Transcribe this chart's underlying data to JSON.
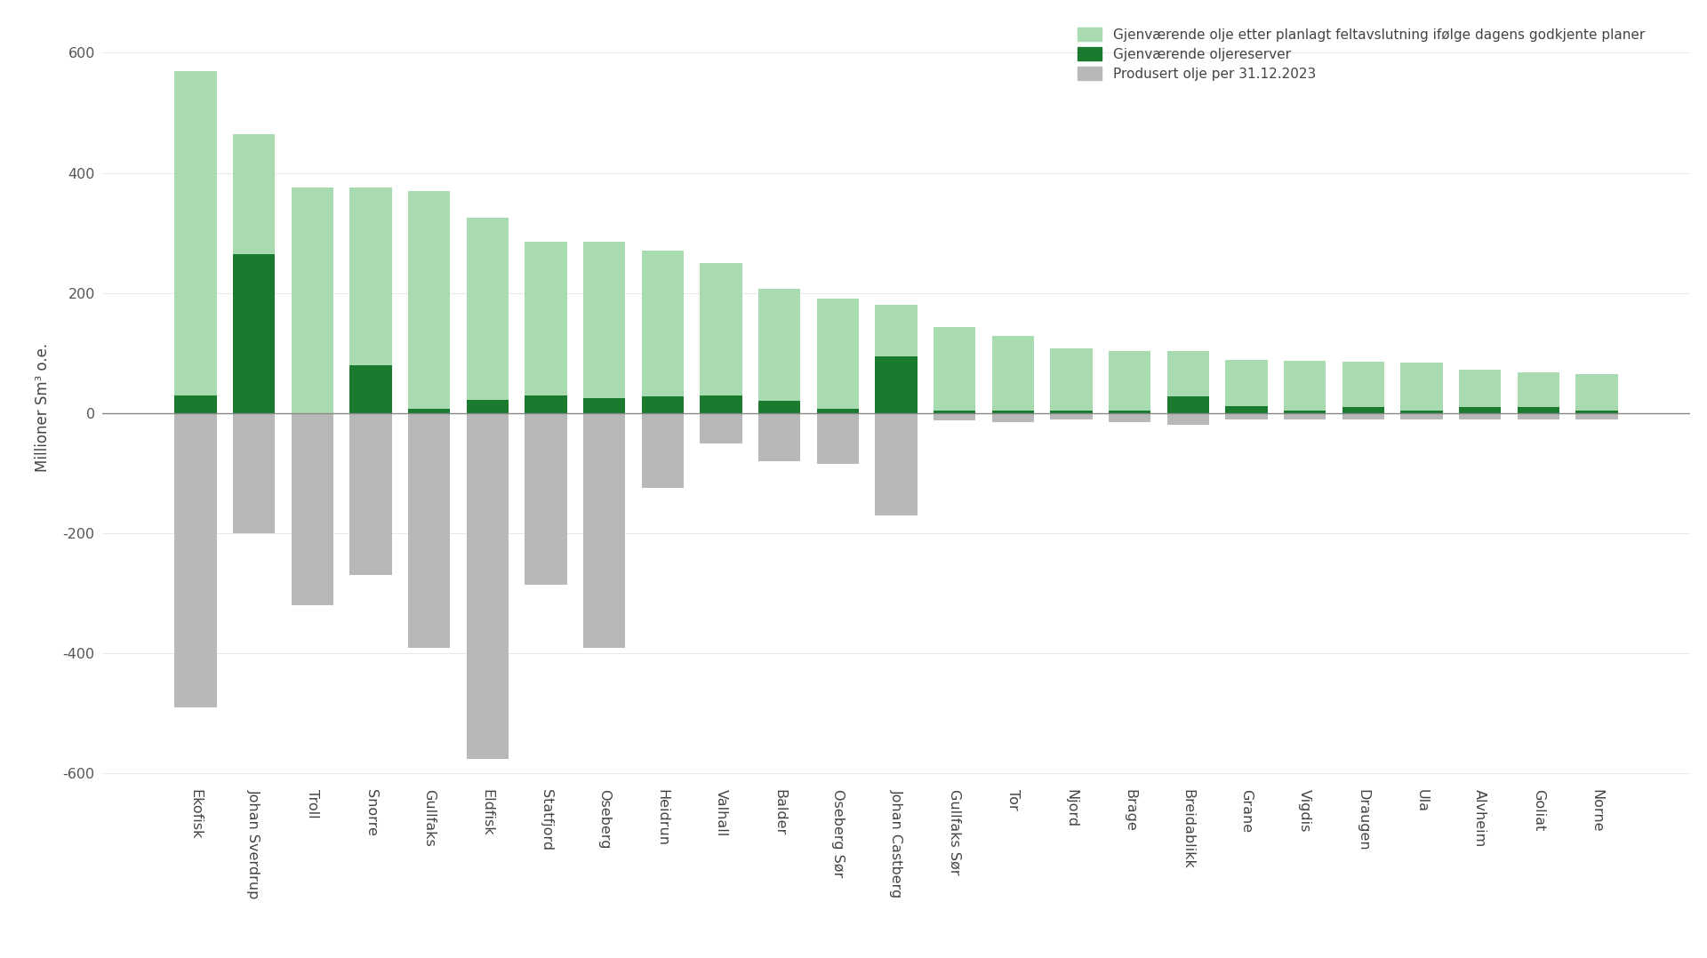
{
  "fields": [
    "Ekofisk",
    "Johan Sverdrup",
    "Troll",
    "Snorre",
    "Gullfaks",
    "Eldfisk",
    "Statfjord",
    "Oseberg",
    "Heidrun",
    "Valhall",
    "Balder",
    "Oseberg Sør",
    "Johan Castberg",
    "Gullfaks Sør",
    "Tor",
    "Njord",
    "Brage",
    "Breidablikk",
    "Grane",
    "Vigdis",
    "Draugen",
    "Ula",
    "Alvheim",
    "Goliat",
    "Norne"
  ],
  "light_green_total": [
    570,
    465,
    375,
    375,
    370,
    325,
    285,
    285,
    270,
    250,
    207,
    190,
    180,
    143,
    128,
    108,
    103,
    103,
    88,
    87,
    86,
    84,
    72,
    68,
    65
  ],
  "dark_green": [
    30,
    265,
    0,
    80,
    8,
    22,
    30,
    25,
    28,
    30,
    20,
    8,
    95,
    5,
    5,
    5,
    5,
    28,
    12,
    5,
    10,
    5,
    10,
    10,
    5
  ],
  "produced": [
    -490,
    -200,
    -320,
    -270,
    -390,
    -575,
    -285,
    -390,
    -125,
    -50,
    -80,
    -85,
    -170,
    -12,
    -15,
    -10,
    -15,
    -20,
    -10,
    -10,
    -10,
    -10,
    -10,
    -10,
    -10
  ],
  "light_green_color": "#a8dbb0",
  "dark_green_color": "#1a7a2e",
  "produced_color": "#b8b8b8",
  "ylabel": "Millioner Sm³ o.e.",
  "legend_1": "Gjenværende olje etter planlagt feltavslutning ifølge dagens godkjente planer",
  "legend_2": "Gjenværende oljereserver",
  "legend_3": "Produsert olje per 31.12.2023",
  "ylim_min": -620,
  "ylim_max": 640,
  "yticks": [
    -600,
    -400,
    -200,
    0,
    200,
    400,
    600
  ],
  "background_color": "#ffffff"
}
